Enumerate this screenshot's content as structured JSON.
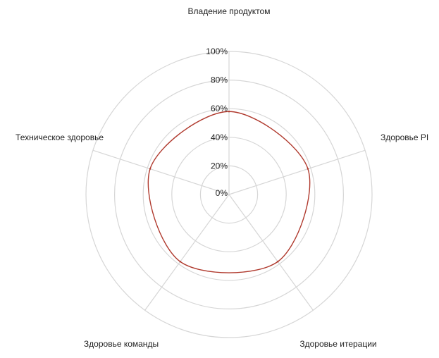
{
  "chart_data": {
    "type": "radar",
    "categories": [
      "Владение продуктом",
      "Здоровье PI",
      "Здоровье итерации",
      "Здоровье команды",
      "Техническое здоровье"
    ],
    "series": [
      {
        "color": "#b03a2e",
        "values": [
          58,
          58,
          58,
          58,
          58
        ]
      }
    ],
    "radial_ticks": [
      "0%",
      "20%",
      "40%",
      "60%",
      "80%",
      "100%"
    ],
    "rlim": [
      0,
      100
    ],
    "grid": true,
    "legend": "none"
  }
}
